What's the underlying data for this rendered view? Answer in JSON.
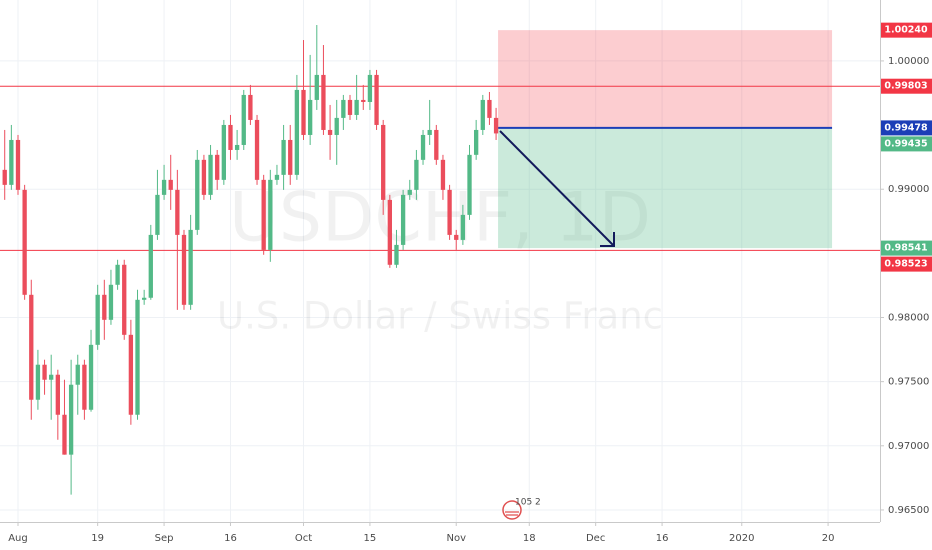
{
  "chart_data": {
    "type": "candlestick",
    "symbol_watermark": "USDCHF, 1D",
    "description_watermark": "U.S. Dollar / Swiss Franc",
    "badge": "105 2",
    "up_color": "#53b987",
    "down_color": "#eb4d5c",
    "x": [
      -2,
      -1,
      0,
      1,
      2,
      3,
      4,
      5,
      6,
      7,
      8,
      9,
      10,
      11,
      12,
      13,
      14,
      15,
      16,
      17,
      18,
      19,
      20,
      21,
      22,
      23,
      24,
      25,
      26,
      27,
      28,
      29,
      30,
      31,
      32,
      33,
      34,
      35,
      36,
      37,
      38,
      39,
      40,
      41,
      42,
      43,
      44,
      45,
      46,
      47,
      48,
      49,
      50,
      51,
      52,
      53,
      54,
      55,
      56,
      57,
      58,
      59,
      60,
      61,
      62,
      63,
      64,
      65,
      66,
      67,
      68,
      69,
      70,
      71,
      72
    ],
    "open": [
      0.99151,
      0.99034,
      0.99384,
      0.98995,
      0.98177,
      0.97359,
      0.97632,
      0.97515,
      0.97554,
      0.97242,
      0.96931,
      0.97476,
      0.97632,
      0.97281,
      0.97787,
      0.98177,
      0.97982,
      0.98255,
      0.98411,
      0.97865,
      0.97242,
      0.98138,
      0.98154,
      0.98644,
      0.98956,
      0.99073,
      0.98995,
      0.98644,
      0.98099,
      0.98683,
      0.99229,
      0.98956,
      0.99268,
      0.99073,
      0.99501,
      0.99306,
      0.99345,
      0.99735,
      0.9954,
      0.99073,
      0.98527,
      0.99073,
      0.99112,
      0.99384,
      0.99112,
      0.99774,
      0.99423,
      0.99696,
      0.99891,
      0.99462,
      0.99423,
      0.99556,
      0.99696,
      0.99579,
      0.99696,
      0.9968,
      0.99891,
      0.99501,
      0.98917,
      0.98411,
      0.98566,
      0.98956,
      0.98995,
      0.99229,
      0.99423,
      0.99462,
      0.99229,
      0.98995,
      0.98644,
      0.98605,
      0.988,
      0.99268,
      0.99462,
      0.99696,
      0.99556
    ],
    "high": [
      0.99462,
      0.99501,
      0.99423,
      0.99034,
      0.98294,
      0.97748,
      0.97671,
      0.9771,
      0.97593,
      0.97515,
      0.97671,
      0.9771,
      0.97671,
      0.97904,
      0.98255,
      0.98294,
      0.98372,
      0.9845,
      0.9845,
      0.97982,
      0.98216,
      0.98216,
      0.98722,
      0.99151,
      0.9919,
      0.99268,
      0.99151,
      0.98683,
      0.988,
      0.99306,
      0.99268,
      0.99345,
      0.99306,
      0.9954,
      0.99579,
      0.99462,
      0.99774,
      0.99813,
      0.99579,
      0.99112,
      0.99151,
      0.9919,
      0.99501,
      0.99501,
      0.99891,
      1.00163,
      1.00047,
      1.0028,
      1.00124,
      0.99657,
      0.99696,
      0.99735,
      0.99735,
      0.99891,
      0.99813,
      0.9993,
      0.9993,
      0.9954,
      0.98956,
      0.98683,
      0.98995,
      0.99073,
      0.99306,
      0.99462,
      0.99696,
      0.99501,
      0.99268,
      0.99034,
      0.98683,
      0.98878,
      0.99345,
      0.9954,
      0.99735,
      0.99758,
      0.99634
    ],
    "low": [
      0.98917,
      0.98995,
      0.98956,
      0.98138,
      0.97203,
      0.97281,
      0.97398,
      0.97203,
      0.97047,
      0.96931,
      0.96619,
      0.97242,
      0.97203,
      0.97266,
      0.97748,
      0.97826,
      0.97943,
      0.98216,
      0.97826,
      0.97164,
      0.97203,
      0.98099,
      0.98138,
      0.98605,
      0.98917,
      0.98839,
      0.9806,
      0.9806,
      0.9806,
      0.98644,
      0.98917,
      0.98917,
      0.98995,
      0.99034,
      0.99229,
      0.99229,
      0.99306,
      0.99501,
      0.99034,
      0.98489,
      0.98434,
      0.99034,
      0.98995,
      0.99034,
      0.99073,
      0.99384,
      0.99345,
      0.99618,
      0.99423,
      0.99229,
      0.9919,
      0.99462,
      0.9954,
      0.9954,
      0.99618,
      0.99618,
      0.99462,
      0.988,
      0.98387,
      0.98387,
      0.98527,
      0.98917,
      0.98917,
      0.9919,
      0.99345,
      0.9919,
      0.98917,
      0.98605,
      0.98527,
      0.98566,
      0.98761,
      0.99229,
      0.99423,
      0.99501,
      0.99384
    ],
    "close": [
      0.99034,
      0.99384,
      0.98995,
      0.98177,
      0.97359,
      0.97632,
      0.97515,
      0.97554,
      0.97242,
      0.96931,
      0.97476,
      0.97632,
      0.97281,
      0.97787,
      0.98177,
      0.97982,
      0.98255,
      0.98411,
      0.97865,
      0.97242,
      0.98138,
      0.98154,
      0.98644,
      0.98956,
      0.99073,
      0.98995,
      0.98644,
      0.98099,
      0.98683,
      0.99229,
      0.98956,
      0.99268,
      0.99073,
      0.99501,
      0.99306,
      0.99345,
      0.99735,
      0.9954,
      0.99073,
      0.98527,
      0.99073,
      0.99112,
      0.99384,
      0.99112,
      0.99774,
      0.99423,
      0.99696,
      0.99891,
      0.99462,
      0.99423,
      0.99556,
      0.99696,
      0.99579,
      0.99696,
      0.9968,
      0.99891,
      0.99501,
      0.98917,
      0.98411,
      0.98566,
      0.98956,
      0.98995,
      0.99229,
      0.99423,
      0.99462,
      0.99229,
      0.98995,
      0.98644,
      0.98605,
      0.988,
      0.99268,
      0.99462,
      0.99696,
      0.99556,
      0.99435
    ],
    "xlim": [
      -2.71,
      129.82
    ],
    "xticks": [
      {
        "value": 0,
        "label": "Aug"
      },
      {
        "value": 12,
        "label": "19"
      },
      {
        "value": 22,
        "label": "Sep"
      },
      {
        "value": 32,
        "label": "16"
      },
      {
        "value": 43,
        "label": "Oct"
      },
      {
        "value": 53,
        "label": "15"
      },
      {
        "value": 66,
        "label": "Nov"
      },
      {
        "value": 77,
        "label": "18"
      },
      {
        "value": 87,
        "label": "Dec"
      },
      {
        "value": 97,
        "label": "16"
      },
      {
        "value": 109,
        "label": "2020"
      },
      {
        "value": 122,
        "label": "20"
      }
    ],
    "ylim": [
      0.96406,
      1.00475
    ],
    "yticks": [
      {
        "value": 0.965,
        "label": "0.96500"
      },
      {
        "value": 0.97,
        "label": "0.97000"
      },
      {
        "value": 0.975,
        "label": "0.97500"
      },
      {
        "value": 0.98,
        "label": "0.98000"
      },
      {
        "value": 0.99,
        "label": "0.99000"
      },
      {
        "value": 1.0,
        "label": "1.00000"
      }
    ],
    "grid": true,
    "levels": [
      {
        "value": 0.99803,
        "label": "0.99803",
        "color": "#f23645"
      },
      {
        "value": 0.98523,
        "label": "0.98523",
        "color": "#f23645"
      }
    ],
    "position": {
      "x_start": 72.3,
      "x_end": 122.6,
      "entry": {
        "value": 0.99478,
        "label": "0.99478",
        "color": "#1c3fb7"
      },
      "stop": {
        "value": 1.0024,
        "label": "1.00240",
        "color": "#f23645"
      },
      "target": {
        "value": 0.98541,
        "label": "0.98541",
        "color": "#53b987"
      }
    },
    "last_price": {
      "value": 0.99435,
      "label": "0.99435",
      "color": "#53b987"
    }
  }
}
